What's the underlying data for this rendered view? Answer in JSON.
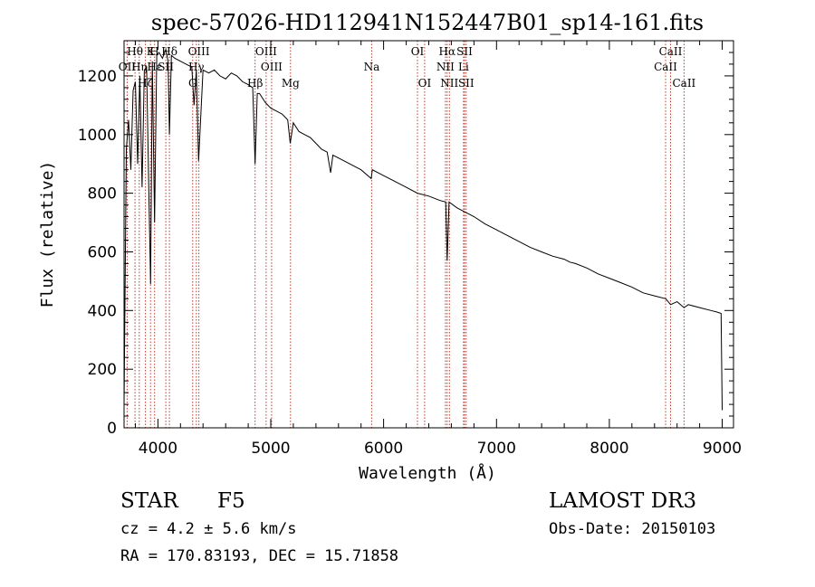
{
  "chart_data": {
    "type": "line",
    "title": "spec-57026-HD112941N152447B01_sp14-161.fits",
    "xlabel": "Wavelength (Å)",
    "ylabel": "Flux (relative)",
    "xlim": [
      3700,
      9100
    ],
    "ylim": [
      0,
      1320
    ],
    "x_ticks": [
      4000,
      5000,
      6000,
      7000,
      8000,
      9000
    ],
    "x_tick_labels": [
      "4000",
      "5000",
      "6000",
      "7000",
      "8000",
      "9000"
    ],
    "y_ticks": [
      0,
      200,
      400,
      600,
      800,
      1000,
      1200
    ],
    "y_tick_labels": [
      "0",
      "200",
      "400",
      "600",
      "800",
      "1000",
      "1200"
    ],
    "grid": false,
    "series": [
      {
        "name": "spectrum",
        "x": [
          3700,
          3720,
          3740,
          3760,
          3780,
          3800,
          3820,
          3840,
          3860,
          3880,
          3900,
          3920,
          3935,
          3950,
          3970,
          3990,
          4010,
          4040,
          4070,
          4090,
          4102,
          4120,
          4150,
          4200,
          4250,
          4300,
          4320,
          4340,
          4360,
          4400,
          4450,
          4500,
          4550,
          4600,
          4650,
          4700,
          4750,
          4800,
          4840,
          4861,
          4880,
          4900,
          4950,
          5000,
          5050,
          5100,
          5150,
          5172,
          5200,
          5250,
          5300,
          5350,
          5400,
          5450,
          5500,
          5530,
          5550,
          5600,
          5700,
          5800,
          5890,
          5900,
          6000,
          6100,
          6200,
          6300,
          6400,
          6500,
          6550,
          6563,
          6580,
          6650,
          6700,
          6800,
          6900,
          7000,
          7100,
          7200,
          7300,
          7400,
          7500,
          7600,
          7650,
          7700,
          7800,
          7900,
          8000,
          8100,
          8200,
          8300,
          8400,
          8500,
          8542,
          8600,
          8662,
          8700,
          8800,
          8900,
          8950,
          8990,
          9000
        ],
        "y": [
          80,
          950,
          1050,
          880,
          1150,
          1180,
          900,
          1200,
          820,
          1220,
          1230,
          800,
          490,
          1250,
          700,
          1270,
          1280,
          1260,
          1290,
          1250,
          1000,
          1270,
          1260,
          1250,
          1240,
          1230,
          1100,
          1220,
          910,
          1220,
          1210,
          1220,
          1200,
          1190,
          1210,
          1200,
          1180,
          1170,
          1160,
          900,
          1140,
          1140,
          1110,
          1090,
          1080,
          1070,
          1050,
          970,
          1040,
          1010,
          1000,
          990,
          970,
          950,
          940,
          870,
          930,
          920,
          900,
          880,
          850,
          880,
          860,
          840,
          820,
          800,
          790,
          775,
          770,
          570,
          770,
          750,
          740,
          720,
          695,
          675,
          655,
          635,
          615,
          600,
          585,
          575,
          565,
          560,
          545,
          525,
          510,
          495,
          480,
          460,
          450,
          440,
          420,
          430,
          410,
          420,
          410,
          400,
          395,
          390,
          60
        ]
      }
    ],
    "line_labels": [
      {
        "text": "Hθ",
        "x": 3797,
        "row": 1
      },
      {
        "text": "OII",
        "x": 3727,
        "row": 2
      },
      {
        "text": "Hη",
        "x": 3835,
        "row": 2
      },
      {
        "text": "Hζ",
        "x": 3889,
        "row": 3
      },
      {
        "text": "Hε",
        "x": 3970,
        "row": 2
      },
      {
        "text": "K",
        "x": 3934,
        "row": 1
      },
      {
        "text": "H",
        "x": 3969,
        "row": 1
      },
      {
        "text": "SII",
        "x": 4070,
        "row": 2
      },
      {
        "text": "Hδ",
        "x": 4102,
        "row": 1
      },
      {
        "text": "OIII",
        "x": 4363,
        "row": 1
      },
      {
        "text": "Hγ",
        "x": 4340,
        "row": 2
      },
      {
        "text": "G",
        "x": 4308,
        "row": 3
      },
      {
        "text": "Hβ",
        "x": 4861,
        "row": 3
      },
      {
        "text": "OIII",
        "x": 4959,
        "row": 1
      },
      {
        "text": "OIII",
        "x": 5007,
        "row": 2
      },
      {
        "text": "Mg",
        "x": 5175,
        "row": 3
      },
      {
        "text": "Na",
        "x": 5894,
        "row": 2
      },
      {
        "text": "OI",
        "x": 6300,
        "row": 1
      },
      {
        "text": "OI",
        "x": 6363,
        "row": 3
      },
      {
        "text": "Hα",
        "x": 6563,
        "row": 1
      },
      {
        "text": "NII",
        "x": 6548,
        "row": 2
      },
      {
        "text": "NII",
        "x": 6583,
        "row": 3
      },
      {
        "text": "SII",
        "x": 6717,
        "row": 1
      },
      {
        "text": "Li",
        "x": 6708,
        "row": 2
      },
      {
        "text": "SII",
        "x": 6731,
        "row": 3
      },
      {
        "text": "CaII",
        "x": 8542,
        "row": 1
      },
      {
        "text": "CaII",
        "x": 8498,
        "row": 2
      },
      {
        "text": "CaII",
        "x": 8662,
        "row": 3
      }
    ],
    "line_markers": [
      3727,
      3797,
      3835,
      3889,
      3934,
      3970,
      4070,
      4102,
      4308,
      4340,
      4363,
      4861,
      4959,
      5007,
      5175,
      5894,
      6300,
      6363,
      6548,
      6563,
      6583,
      6708,
      6717,
      6731,
      8498,
      8542,
      8662
    ],
    "colors": {
      "spectrum": "#000000",
      "markers": "#c0392b",
      "axes": "#000000"
    }
  },
  "info": {
    "object_class": "STAR",
    "subclass": "F5",
    "survey": "LAMOST DR3",
    "cz": "cz = 4.2 ± 5.6 km/s",
    "obs_date": "Obs-Date: 20150103",
    "coords": "RA = 170.83193, DEC =  15.71858"
  }
}
